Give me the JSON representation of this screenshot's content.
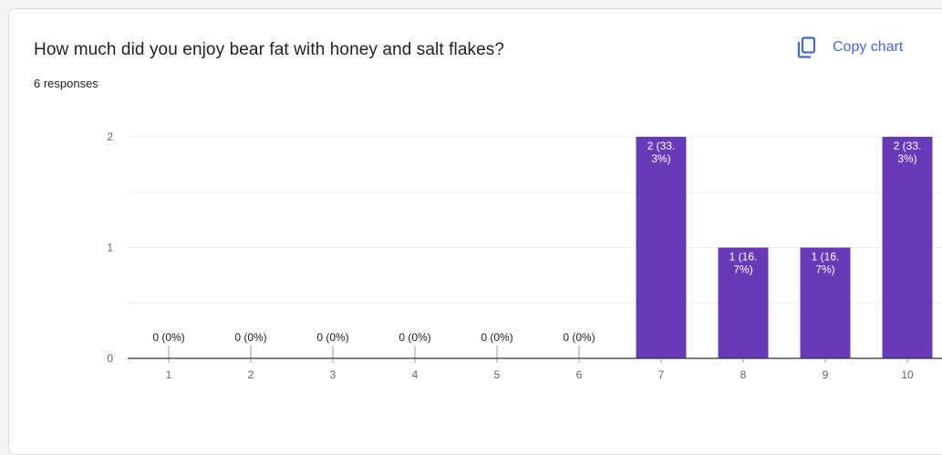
{
  "header": {
    "question": "How much did you enjoy bear fat with honey and salt flakes?",
    "responses": "6 responses",
    "copy_label": "Copy chart"
  },
  "colors": {
    "bar": "#673ab7",
    "link": "#4467d8",
    "grid": "#ececec",
    "axis": "#333333"
  },
  "chart_data": {
    "type": "bar",
    "title": "How much did you enjoy bear fat with honey and salt flakes?",
    "categories": [
      "1",
      "2",
      "3",
      "4",
      "5",
      "6",
      "7",
      "8",
      "9",
      "10"
    ],
    "values": [
      0,
      0,
      0,
      0,
      0,
      0,
      2,
      1,
      1,
      2
    ],
    "data_labels": [
      "0 (0%)",
      "0 (0%)",
      "0 (0%)",
      "0 (0%)",
      "0 (0%)",
      "0 (0%)",
      "2 (33.\n3%)",
      "1 (16.\n7%)",
      "1 (16.\n7%)",
      "2 (33.\n3%)"
    ],
    "ylim": [
      0,
      2
    ],
    "yticks": [
      0,
      1,
      2
    ],
    "grid": true,
    "legend": "none",
    "xlabel": "",
    "ylabel": ""
  }
}
